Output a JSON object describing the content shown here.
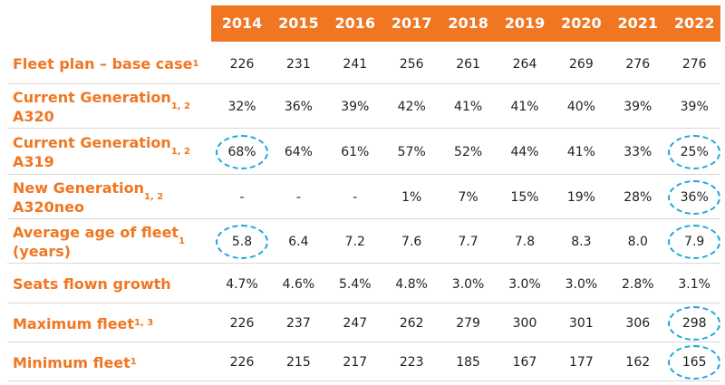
{
  "columns": [
    "2014",
    "2015",
    "2016",
    "2017",
    "2018",
    "2019",
    "2020",
    "2021",
    "2022"
  ],
  "rows": [
    {
      "label": "Fleet plan – base case",
      "sup": "1",
      "values": [
        "226",
        "231",
        "241",
        "256",
        "261",
        "264",
        "269",
        "276",
        "276"
      ]
    },
    {
      "label": "Current Generation\nA320",
      "sup": "1, 2",
      "values": [
        "32%",
        "36%",
        "39%",
        "42%",
        "41%",
        "41%",
        "40%",
        "39%",
        "39%"
      ]
    },
    {
      "label": "Current Generation\nA319",
      "sup": "1, 2",
      "values": [
        "68%",
        "64%",
        "61%",
        "57%",
        "52%",
        "44%",
        "41%",
        "33%",
        "25%"
      ]
    },
    {
      "label": "New Generation\nA320neo",
      "sup": "1, 2",
      "values": [
        "-",
        "-",
        "-",
        "1%",
        "7%",
        "15%",
        "19%",
        "28%",
        "36%"
      ]
    },
    {
      "label": "Average age of fleet\n(years)",
      "sup": "1",
      "values": [
        "5.8",
        "6.4",
        "7.2",
        "7.6",
        "7.7",
        "7.8",
        "8.3",
        "8.0",
        "7.9"
      ]
    },
    {
      "label": "Seats flown growth",
      "sup": "",
      "values": [
        "4.7%",
        "4.6%",
        "5.4%",
        "4.8%",
        "3.0%",
        "3.0%",
        "3.0%",
        "2.8%",
        "3.1%"
      ]
    },
    {
      "label": "Maximum fleet",
      "sup": "1, 3",
      "values": [
        "226",
        "237",
        "247",
        "262",
        "279",
        "300",
        "301",
        "306",
        "298"
      ]
    },
    {
      "label": "Minimum fleet",
      "sup": "1",
      "values": [
        "226",
        "215",
        "217",
        "223",
        "185",
        "167",
        "177",
        "162",
        "165"
      ]
    }
  ],
  "highlight_color": "#1da7d8",
  "header_color": "#f07622",
  "highlighted_cells": [
    {
      "row": 2,
      "col": 0
    },
    {
      "row": 2,
      "col": 8
    },
    {
      "row": 3,
      "col": 8
    },
    {
      "row": 4,
      "col": 0
    },
    {
      "row": 4,
      "col": 8
    },
    {
      "row": 6,
      "col": 8
    },
    {
      "row": 7,
      "col": 8
    }
  ]
}
